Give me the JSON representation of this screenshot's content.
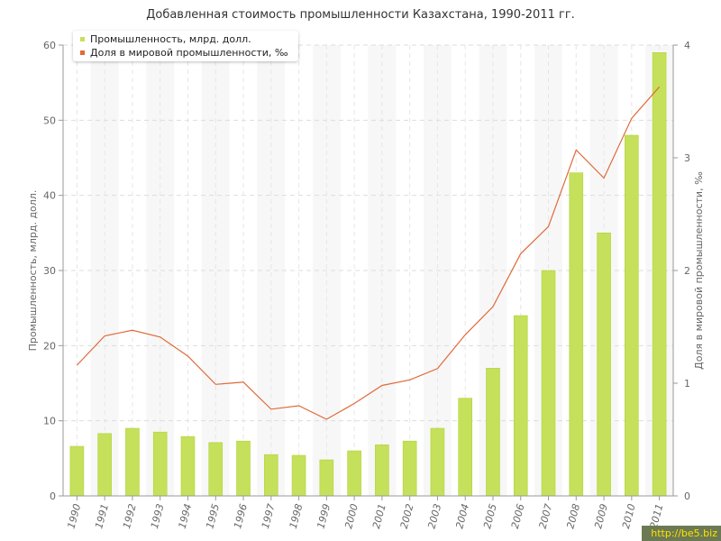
{
  "title": "Добавленная стоимость промышленности Казахстана, 1990-2011 гг.",
  "legend": {
    "bars": "Промышленность, млрд. долл.",
    "line": "Доля в мировой промышленности, ‰"
  },
  "watermark": "http://be5.biz",
  "colors": {
    "bar": "#c5e05a",
    "bar_edge": "#b2d33a",
    "line": "#e06a3a",
    "grid": "#dddddd",
    "axis": "#999999"
  },
  "chart_data": {
    "type": "bar+line",
    "categories": [
      "1990",
      "1991",
      "1992",
      "1993",
      "1994",
      "1995",
      "1996",
      "1997",
      "1998",
      "1999",
      "2000",
      "2001",
      "2002",
      "2003",
      "2004",
      "2005",
      "2006",
      "2007",
      "2008",
      "2009",
      "2010",
      "2011"
    ],
    "series": [
      {
        "name": "Промышленность, млрд. долл.",
        "type": "bar",
        "axis": "left",
        "values": [
          6.6,
          8.3,
          9.0,
          8.5,
          7.9,
          7.1,
          7.3,
          5.5,
          5.4,
          4.8,
          6.0,
          6.8,
          7.3,
          9.0,
          13.0,
          17.0,
          24.0,
          30.0,
          43.0,
          35.0,
          48.0,
          59.0
        ]
      },
      {
        "name": "Доля в мировой промышленности, ‰",
        "type": "line",
        "axis": "right",
        "values": [
          1.16,
          1.42,
          1.47,
          1.41,
          1.24,
          0.99,
          1.01,
          0.77,
          0.8,
          0.68,
          0.82,
          0.98,
          1.03,
          1.13,
          1.43,
          1.68,
          2.15,
          2.39,
          3.07,
          2.82,
          3.35,
          3.63
        ]
      }
    ],
    "ylabel_left": "Промышленность, млрд. долл.",
    "ylabel_right": "Доля в мировой промышленности, ‰",
    "ylim_left": [
      0,
      60
    ],
    "ylim_right": [
      0,
      4
    ],
    "yticks_left": [
      0,
      10,
      20,
      30,
      40,
      50,
      60
    ],
    "yticks_right": [
      0,
      1,
      2,
      3,
      4
    ],
    "grid": true,
    "legend_position": "top-left"
  }
}
